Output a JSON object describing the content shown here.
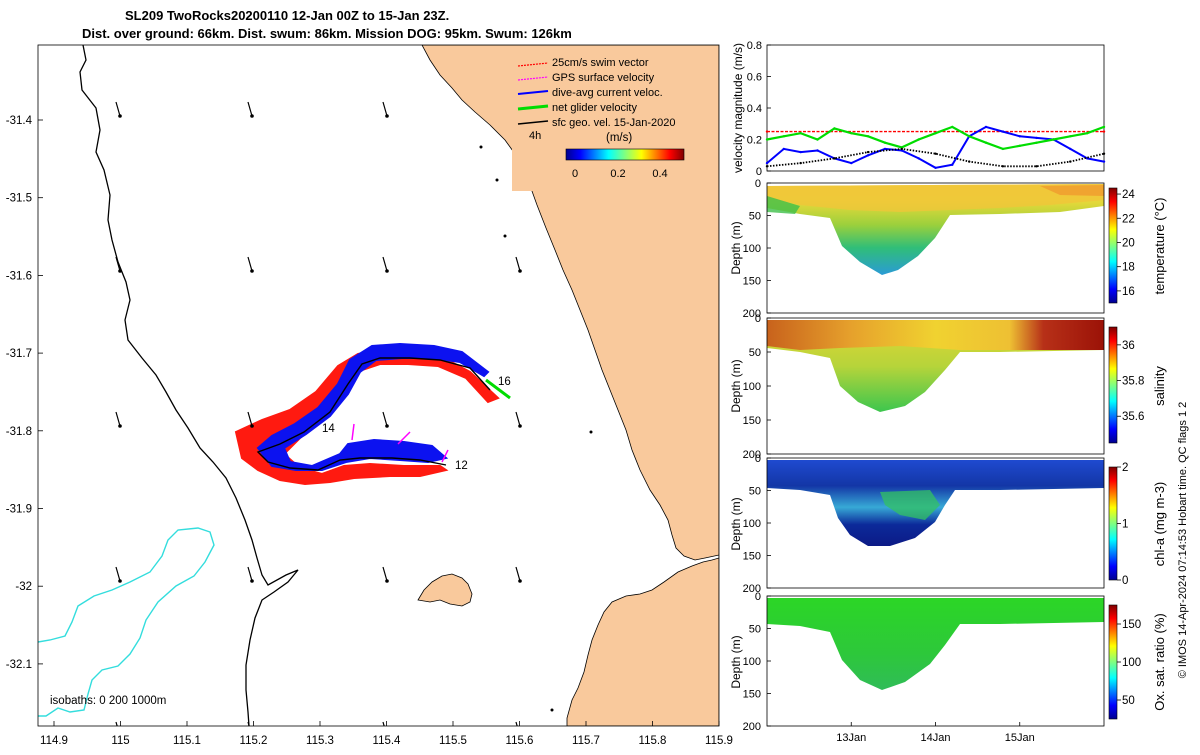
{
  "title": {
    "line1": "SL209 TwoRocks20200110 12-Jan 00Z to 15-Jan 23Z.",
    "line2": "Dist. over ground: 66km. Dist. swum: 86km. Mission DOG: 95km. Swum: 126km"
  },
  "map": {
    "legend": {
      "items": [
        {
          "label": "25cm/s swim vector",
          "color": "#ff0000"
        },
        {
          "label": "GPS surface velocity",
          "color": "#ff00ff"
        },
        {
          "label": "dive-avg current veloc.",
          "color": "#0000ff"
        },
        {
          "label": "net glider velocity",
          "color": "#00dd00"
        },
        {
          "label": "sfc geo. vel. 15-Jan-2020",
          "color": "#000000"
        }
      ],
      "timestep": "4h",
      "units": "(m/s)",
      "colorbar_ticks": [
        "0",
        "0.2",
        "0.4"
      ]
    },
    "x_ticks": [
      "114.9",
      "115",
      "115.1",
      "115.2",
      "115.3",
      "115.4",
      "115.5",
      "115.6",
      "115.7",
      "115.8",
      "115.9"
    ],
    "y_ticks": [
      "-31.4",
      "-31.5",
      "-31.6",
      "-31.7",
      "-31.8",
      "-31.9",
      "-32",
      "-32.1"
    ],
    "isobaths_text": "isobaths: 0   200  1000m",
    "day_labels": [
      "16",
      "14",
      "12"
    ],
    "colors": {
      "land": "#f9c99c",
      "isobath_200": "#000000",
      "isobath_1000": "#33dddd"
    }
  },
  "chart_data": [
    {
      "type": "line",
      "ylabel": "velocity magnitude (m/s)",
      "ylim": [
        0,
        0.8
      ],
      "y_ticks": [
        "0",
        "0.2",
        "0.4",
        "0.6",
        "0.8"
      ],
      "xlim": [
        12,
        16
      ],
      "series": [
        {
          "name": "25cm/s swim vector",
          "color": "#ff0000",
          "x": [
            12.0,
            16.0
          ],
          "values": [
            0.25,
            0.25
          ]
        },
        {
          "name": "dive-avg current veloc.",
          "color": "#0000ff",
          "x": [
            12.0,
            12.2,
            12.4,
            12.6,
            12.8,
            13.0,
            13.2,
            13.4,
            13.6,
            13.8,
            14.0,
            14.2,
            14.4,
            14.6,
            14.8,
            15.0,
            15.2,
            15.4,
            15.6,
            15.8,
            16.0
          ],
          "values": [
            0.05,
            0.14,
            0.12,
            0.13,
            0.08,
            0.05,
            0.1,
            0.14,
            0.13,
            0.08,
            0.02,
            0.04,
            0.22,
            0.28,
            0.25,
            0.22,
            0.21,
            0.2,
            0.14,
            0.08,
            0.06
          ]
        },
        {
          "name": "net glider velocity",
          "color": "#00dd00",
          "x": [
            12.0,
            12.2,
            12.4,
            12.6,
            12.8,
            13.0,
            13.2,
            13.4,
            13.6,
            13.8,
            14.0,
            14.2,
            14.4,
            14.6,
            14.8,
            15.0,
            15.2,
            15.4,
            15.6,
            15.8,
            16.0
          ],
          "values": [
            0.2,
            0.22,
            0.24,
            0.2,
            0.27,
            0.24,
            0.22,
            0.18,
            0.15,
            0.2,
            0.24,
            0.28,
            0.22,
            0.18,
            0.14,
            0.16,
            0.18,
            0.2,
            0.22,
            0.24,
            0.28
          ]
        },
        {
          "name": "sfc geo. vel. 15-Jan-2020",
          "color": "#000000",
          "x": [
            12.0,
            12.4,
            12.8,
            13.2,
            13.6,
            14.0,
            14.4,
            14.8,
            15.2,
            15.6,
            16.0
          ],
          "values": [
            0.03,
            0.05,
            0.08,
            0.12,
            0.14,
            0.11,
            0.06,
            0.03,
            0.03,
            0.06,
            0.11
          ]
        }
      ]
    },
    {
      "type": "heatmap",
      "ylabel": "Depth (m)",
      "y_ticks": [
        "0",
        "50",
        "100",
        "150",
        "200"
      ],
      "ylim": [
        200,
        0
      ],
      "colorbar": {
        "label": "temperature (°C)",
        "min": 15,
        "max": 24.5,
        "ticks": [
          "24",
          "22",
          "20",
          "18",
          "16"
        ]
      }
    },
    {
      "type": "heatmap",
      "ylabel": "Depth (m)",
      "y_ticks": [
        "0",
        "50",
        "100",
        "150",
        "200"
      ],
      "ylim": [
        200,
        0
      ],
      "colorbar": {
        "label": "salinity",
        "min": 35.45,
        "max": 36.1,
        "ticks": [
          "36",
          "35.8",
          "35.6"
        ]
      }
    },
    {
      "type": "heatmap",
      "ylabel": "Depth (m)",
      "y_ticks": [
        "0",
        "50",
        "100",
        "150",
        "200"
      ],
      "ylim": [
        200,
        0
      ],
      "colorbar": {
        "label": "chl-a (mg m-3)",
        "min": 0,
        "max": 2,
        "ticks": [
          "2",
          "1",
          "0"
        ]
      }
    },
    {
      "type": "heatmap",
      "ylabel": "Depth (m)",
      "y_ticks": [
        "0",
        "50",
        "100",
        "150",
        "200"
      ],
      "ylim": [
        200,
        0
      ],
      "colorbar": {
        "label": "Ox. sat. ratio (%)",
        "min": 25,
        "max": 175,
        "ticks": [
          "150",
          "100",
          "50"
        ]
      },
      "x_ticks": [
        "13Jan",
        "14Jan",
        "15Jan"
      ]
    }
  ],
  "credit": "© IMOS 14-Apr-2024 07:14:53 Hobart time. QC flags 1  2"
}
